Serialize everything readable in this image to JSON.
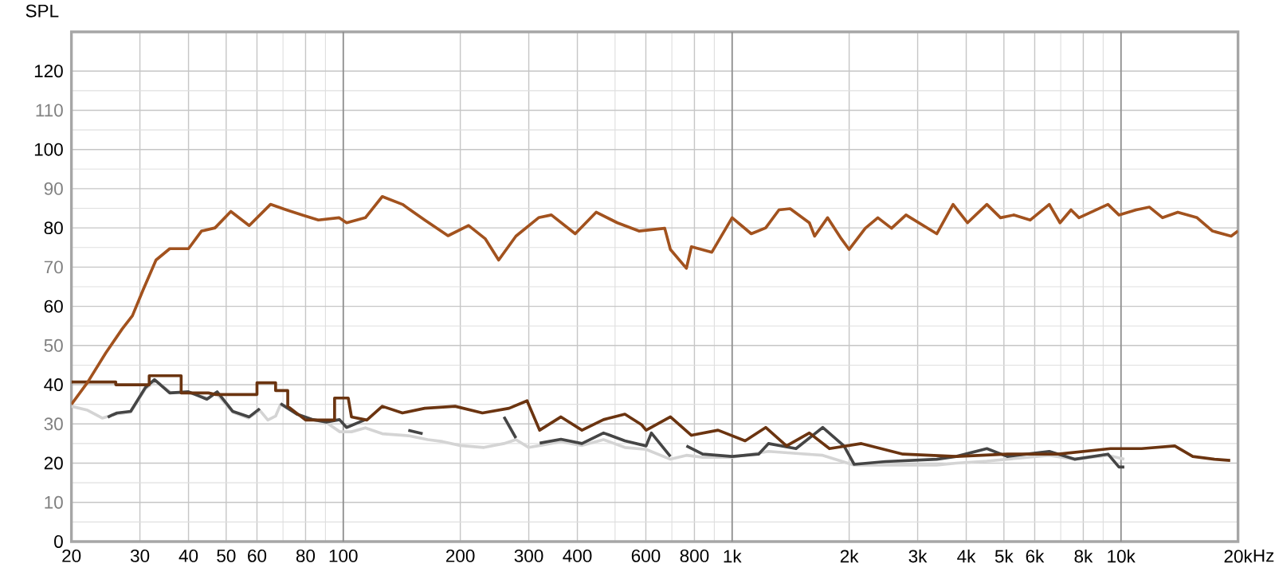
{
  "chart_data": {
    "type": "line",
    "ylabel": "SPL",
    "log": "x",
    "grid": true,
    "marker": "none",
    "line_style": "solid",
    "xlim": [
      20,
      20000
    ],
    "ylim": [
      0,
      130
    ],
    "xticks": [
      20,
      30,
      40,
      50,
      60,
      80,
      100,
      200,
      300,
      400,
      600,
      800,
      {
        "value": 1000,
        "label": "1k"
      },
      {
        "value": 2000,
        "label": "2k"
      },
      {
        "value": 3000,
        "label": "3k"
      },
      {
        "value": 4000,
        "label": "4k"
      },
      {
        "value": 5000,
        "label": "5k"
      },
      {
        "value": 6000,
        "label": "6k"
      },
      {
        "value": 8000,
        "label": "8k"
      },
      {
        "value": 10000,
        "label": "10k"
      },
      {
        "value": 20000,
        "label": "20k"
      }
    ],
    "xlabel": "Hz",
    "yticks": [
      0,
      10,
      20,
      30,
      40,
      50,
      60,
      70,
      80,
      90,
      100,
      110,
      120
    ],
    "series": [
      {
        "color": "#d4d4d4",
        "x": [
          20,
          22,
          24,
          26,
          28.4,
          31,
          33,
          36,
          40,
          45,
          47,
          52,
          57,
          61,
          64,
          67,
          69,
          76,
          84,
          90,
          98,
          105,
          114,
          126,
          147,
          165,
          180,
          200,
          230,
          259,
          278,
          300,
          320,
          363,
          411,
          467,
          530,
          601,
          694,
          763,
          840,
          1000,
          1240,
          1460,
          1710,
          2060,
          2480,
          3360,
          3770,
          4520,
          5100,
          6540,
          7600,
          9260,
          10200
        ],
        "values": [
          34.5,
          33.5,
          31.5,
          32.5,
          33,
          39,
          41,
          38,
          38,
          36.5,
          38,
          33,
          31.5,
          33.5,
          31,
          32,
          35,
          32.5,
          31,
          30.5,
          28,
          28,
          29,
          27.5,
          27,
          26,
          25.5,
          24.5,
          24,
          25,
          26,
          24,
          24.5,
          25.5,
          24.5,
          26,
          24,
          23.5,
          21,
          22,
          21.5,
          21.5,
          23,
          22.5,
          22,
          19.5,
          19.5,
          19.5,
          20,
          20.5,
          21,
          22,
          21,
          22,
          21
        ]
      },
      {
        "color": "#454545",
        "x": [
          24.8,
          25.5,
          26.2,
          28.4,
          31,
          32.7,
          35.8,
          40,
          44.6,
          47.4,
          52,
          57.3,
          61,
          65,
          69,
          76,
          83.6,
          90.5,
          97.8,
          102,
          114,
          130,
          147,
          160,
          200,
          259,
          278,
          300,
          320,
          363,
          411,
          467,
          530,
          601,
          620,
          694,
          720,
          763,
          840,
          1000,
          1170,
          1240,
          1460,
          1710,
          1940,
          2060,
          2480,
          3360,
          3770,
          4520,
          5100,
          6540,
          7600,
          9260,
          9880,
          10200
        ],
        "values": [
          31.7,
          32.3,
          32.8,
          33.2,
          39.3,
          41.3,
          37.9,
          38.2,
          36.3,
          38.2,
          33.2,
          31.8,
          33.9,
          null,
          35.2,
          32.5,
          31.1,
          30.5,
          31.1,
          29.1,
          31.1,
          null,
          28.4,
          27.5,
          null,
          31.8,
          26.4,
          null,
          25.1,
          26.1,
          25,
          27.7,
          25.7,
          24.4,
          27.7,
          21.7,
          null,
          24.4,
          22.3,
          21.7,
          22.3,
          25,
          23.7,
          29.1,
          24.4,
          19.7,
          20.4,
          21,
          21.7,
          23.7,
          21.7,
          23,
          21,
          22.3,
          19,
          19
        ]
      },
      {
        "color": "#6b3410",
        "x": [
          20,
          26,
          26,
          31.7,
          31.7,
          38.3,
          38.3,
          45,
          47,
          60,
          60,
          67,
          67,
          72,
          72,
          80,
          95,
          95,
          103,
          105,
          115,
          126,
          142,
          162,
          194,
          228,
          267,
          297,
          320,
          363,
          411,
          467,
          530,
          585,
          601,
          694,
          786,
          920,
          1080,
          1220,
          1380,
          1580,
          1780,
          2150,
          2750,
          3770,
          5100,
          6900,
          9400,
          11300,
          13750,
          15300,
          17400,
          19100
        ],
        "values": [
          40.7,
          40.7,
          40,
          40,
          42.3,
          42.3,
          37.9,
          37.9,
          37.5,
          37.5,
          40.5,
          40.5,
          38.5,
          38.5,
          34.5,
          31,
          31,
          36.6,
          36.6,
          31.8,
          31,
          34.5,
          32.8,
          34,
          34.5,
          32.8,
          34,
          35.9,
          28.4,
          31.8,
          28.4,
          31.1,
          32.5,
          29.8,
          28.4,
          31.8,
          27.1,
          28.4,
          25.7,
          29.1,
          24.4,
          27.7,
          23.7,
          25,
          22.3,
          21.7,
          22.3,
          22.3,
          23.7,
          23.7,
          24.4,
          21.7,
          21,
          20.7
        ]
      },
      {
        "color": "#a2521e",
        "x": [
          20,
          22,
          24.5,
          27,
          28.7,
          30.6,
          33,
          35.8,
          40,
          43.2,
          46.8,
          51.4,
          57.3,
          65,
          71.4,
          78.5,
          86.3,
          97.5,
          102,
          114,
          126,
          142,
          162,
          186,
          210,
          232,
          251,
          278,
          318,
          343,
          395,
          447,
          507,
          576,
          671,
          694,
          763,
          786,
          887,
          1000,
          1120,
          1220,
          1320,
          1410,
          1580,
          1630,
          1760,
          1910,
          2000,
          2200,
          2370,
          2570,
          2800,
          3360,
          3700,
          4030,
          4520,
          4900,
          5310,
          5840,
          6540,
          6970,
          7440,
          7800,
          9260,
          9880,
          10940,
          11840,
          12790,
          14000,
          15690,
          17200,
          19200,
          20000
        ],
        "values": [
          35,
          40.6,
          48.1,
          54.2,
          57.6,
          64.3,
          71.8,
          74.7,
          74.7,
          79.2,
          80,
          84.2,
          80.6,
          86,
          84.6,
          83.3,
          82,
          82.6,
          81.3,
          82.6,
          88,
          86,
          82,
          78,
          80.6,
          77.2,
          71.8,
          77.9,
          82.6,
          83.3,
          78.5,
          84,
          81.3,
          79.2,
          79.9,
          74.5,
          69.7,
          75.2,
          73.8,
          82.6,
          78.5,
          80,
          84.6,
          84.9,
          81.3,
          77.9,
          82.6,
          77.2,
          74.5,
          79.9,
          82.6,
          79.9,
          83.3,
          78.5,
          86,
          81.3,
          86,
          82.6,
          83.3,
          82,
          86,
          81.3,
          84.6,
          82.6,
          86,
          83.3,
          84.6,
          85.3,
          82.6,
          84,
          82.6,
          79.2,
          77.9,
          79.2
        ]
      }
    ]
  }
}
